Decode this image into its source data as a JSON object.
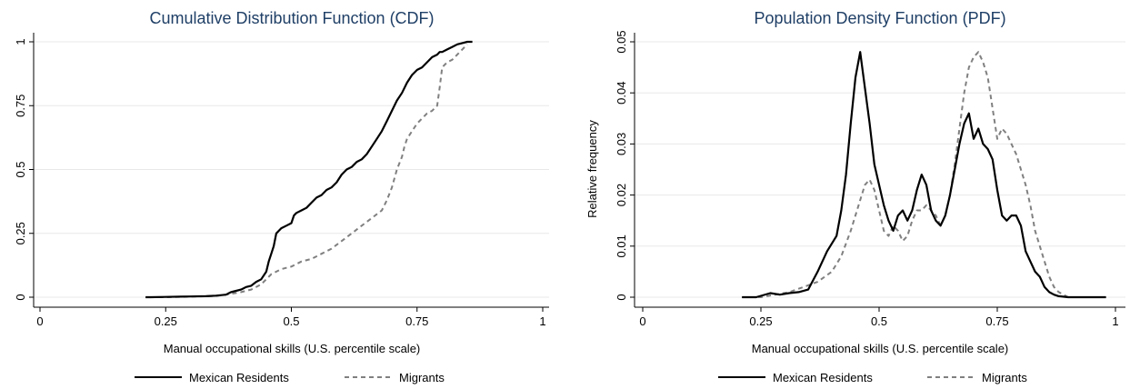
{
  "chart_data": [
    {
      "type": "line",
      "title": "Cumulative Distribution Function (CDF)",
      "xlabel": "Manual occupational skills (U.S. percentile scale)",
      "ylabel": "",
      "xlim": [
        0,
        1
      ],
      "ylim": [
        0,
        1
      ],
      "x_ticks": [
        0,
        0.25,
        0.5,
        0.75,
        1
      ],
      "x_tick_labels": [
        "0",
        "0.25",
        "0.5",
        "0.75",
        "1"
      ],
      "y_ticks": [
        0,
        0.25,
        0.5,
        0.75,
        1
      ],
      "y_tick_labels": [
        "0",
        "0.25",
        "0.5",
        "0.75",
        "1"
      ],
      "grid": "horizontal",
      "legend_position": "bottom",
      "series": [
        {
          "name": "Mexican Residents",
          "color": "#000000",
          "style": "solid",
          "x": [
            0.21,
            0.22,
            0.25,
            0.28,
            0.3,
            0.33,
            0.35,
            0.37,
            0.38,
            0.39,
            0.4,
            0.41,
            0.42,
            0.43,
            0.44,
            0.45,
            0.455,
            0.46,
            0.465,
            0.47,
            0.48,
            0.49,
            0.5,
            0.505,
            0.51,
            0.52,
            0.53,
            0.54,
            0.55,
            0.56,
            0.57,
            0.58,
            0.59,
            0.6,
            0.61,
            0.62,
            0.63,
            0.64,
            0.65,
            0.66,
            0.67,
            0.68,
            0.69,
            0.7,
            0.71,
            0.72,
            0.73,
            0.74,
            0.75,
            0.76,
            0.77,
            0.78,
            0.79,
            0.795,
            0.8,
            0.81,
            0.82,
            0.83,
            0.84,
            0.85,
            0.86
          ],
          "y": [
            0,
            0,
            0.001,
            0.002,
            0.003,
            0.004,
            0.006,
            0.01,
            0.02,
            0.025,
            0.03,
            0.04,
            0.045,
            0.06,
            0.07,
            0.1,
            0.14,
            0.17,
            0.2,
            0.25,
            0.27,
            0.28,
            0.29,
            0.32,
            0.33,
            0.34,
            0.35,
            0.37,
            0.39,
            0.4,
            0.42,
            0.43,
            0.45,
            0.48,
            0.5,
            0.51,
            0.53,
            0.54,
            0.56,
            0.59,
            0.62,
            0.65,
            0.69,
            0.73,
            0.77,
            0.8,
            0.84,
            0.87,
            0.89,
            0.9,
            0.92,
            0.94,
            0.95,
            0.96,
            0.96,
            0.97,
            0.98,
            0.99,
            0.995,
            1.0,
            1.0
          ]
        },
        {
          "name": "Migrants",
          "color": "#808080",
          "style": "dashed",
          "x": [
            0.22,
            0.25,
            0.3,
            0.35,
            0.37,
            0.4,
            0.42,
            0.44,
            0.45,
            0.46,
            0.47,
            0.48,
            0.5,
            0.52,
            0.54,
            0.56,
            0.58,
            0.6,
            0.62,
            0.64,
            0.66,
            0.68,
            0.69,
            0.7,
            0.71,
            0.72,
            0.725,
            0.73,
            0.74,
            0.75,
            0.76,
            0.77,
            0.78,
            0.79,
            0.795,
            0.8,
            0.81,
            0.82,
            0.83,
            0.84,
            0.85
          ],
          "y": [
            0,
            0,
            0.002,
            0.005,
            0.01,
            0.02,
            0.03,
            0.05,
            0.07,
            0.09,
            0.1,
            0.11,
            0.12,
            0.14,
            0.15,
            0.17,
            0.19,
            0.22,
            0.25,
            0.28,
            0.31,
            0.34,
            0.38,
            0.43,
            0.5,
            0.55,
            0.59,
            0.62,
            0.65,
            0.68,
            0.7,
            0.72,
            0.73,
            0.75,
            0.82,
            0.9,
            0.92,
            0.93,
            0.95,
            0.97,
            0.99
          ]
        }
      ]
    },
    {
      "type": "line",
      "title": "Population Density Function (PDF)",
      "xlabel": "Manual occupational skills (U.S. percentile scale)",
      "ylabel": "Relative frequency",
      "xlim": [
        0,
        1
      ],
      "ylim": [
        0,
        0.05
      ],
      "x_ticks": [
        0,
        0.25,
        0.5,
        0.75,
        1
      ],
      "x_tick_labels": [
        "0",
        "0.25",
        "0.5",
        "0.75",
        "1"
      ],
      "y_ticks": [
        0,
        0.01,
        0.02,
        0.03,
        0.04,
        0.05
      ],
      "y_tick_labels": [
        "0",
        "0.01",
        "0.02",
        "0.03",
        "0.04",
        "0.05"
      ],
      "grid": "horizontal",
      "legend_position": "bottom",
      "series": [
        {
          "name": "Mexican Residents",
          "color": "#000000",
          "style": "solid",
          "x": [
            0.21,
            0.24,
            0.27,
            0.29,
            0.31,
            0.33,
            0.35,
            0.37,
            0.39,
            0.41,
            0.42,
            0.43,
            0.44,
            0.45,
            0.46,
            0.47,
            0.48,
            0.49,
            0.5,
            0.51,
            0.52,
            0.53,
            0.54,
            0.55,
            0.56,
            0.57,
            0.58,
            0.59,
            0.6,
            0.61,
            0.62,
            0.63,
            0.64,
            0.65,
            0.66,
            0.67,
            0.68,
            0.69,
            0.7,
            0.71,
            0.72,
            0.73,
            0.74,
            0.75,
            0.76,
            0.77,
            0.78,
            0.79,
            0.8,
            0.81,
            0.82,
            0.83,
            0.84,
            0.85,
            0.86,
            0.87,
            0.88,
            0.9,
            0.93,
            0.96,
            0.98
          ],
          "y": [
            0,
            0,
            0.0008,
            0.0005,
            0.0008,
            0.001,
            0.0015,
            0.005,
            0.009,
            0.012,
            0.017,
            0.024,
            0.034,
            0.043,
            0.048,
            0.041,
            0.034,
            0.026,
            0.022,
            0.018,
            0.015,
            0.013,
            0.016,
            0.017,
            0.015,
            0.017,
            0.021,
            0.024,
            0.022,
            0.017,
            0.015,
            0.014,
            0.016,
            0.02,
            0.025,
            0.03,
            0.034,
            0.036,
            0.031,
            0.033,
            0.03,
            0.029,
            0.027,
            0.021,
            0.016,
            0.015,
            0.016,
            0.016,
            0.014,
            0.009,
            0.007,
            0.005,
            0.004,
            0.002,
            0.001,
            0.0005,
            0.0002,
            0,
            0,
            0,
            0
          ]
        },
        {
          "name": "Migrants",
          "color": "#808080",
          "style": "dashed",
          "x": [
            0.21,
            0.25,
            0.28,
            0.31,
            0.34,
            0.37,
            0.4,
            0.42,
            0.44,
            0.46,
            0.47,
            0.48,
            0.49,
            0.5,
            0.51,
            0.52,
            0.53,
            0.54,
            0.55,
            0.56,
            0.57,
            0.58,
            0.59,
            0.6,
            0.61,
            0.62,
            0.63,
            0.64,
            0.65,
            0.66,
            0.67,
            0.68,
            0.69,
            0.7,
            0.71,
            0.72,
            0.73,
            0.74,
            0.75,
            0.76,
            0.77,
            0.78,
            0.79,
            0.8,
            0.81,
            0.82,
            0.83,
            0.84,
            0.85,
            0.86,
            0.87,
            0.88,
            0.9,
            0.93,
            0.96,
            0.98
          ],
          "y": [
            0,
            0,
            0.0005,
            0.001,
            0.002,
            0.003,
            0.005,
            0.008,
            0.013,
            0.019,
            0.022,
            0.023,
            0.021,
            0.017,
            0.013,
            0.012,
            0.014,
            0.013,
            0.011,
            0.012,
            0.015,
            0.017,
            0.017,
            0.018,
            0.017,
            0.016,
            0.014,
            0.016,
            0.02,
            0.026,
            0.033,
            0.04,
            0.045,
            0.047,
            0.048,
            0.046,
            0.043,
            0.037,
            0.031,
            0.033,
            0.032,
            0.03,
            0.028,
            0.025,
            0.022,
            0.018,
            0.013,
            0.01,
            0.007,
            0.004,
            0.002,
            0.001,
            0,
            0,
            0,
            0
          ]
        }
      ]
    }
  ]
}
